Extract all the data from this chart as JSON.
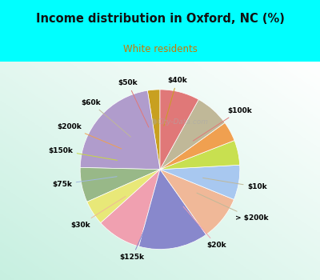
{
  "title": "Income distribution in Oxford, NC (%)",
  "subtitle": "White residents",
  "title_color": "#111111",
  "subtitle_color": "#cc7700",
  "background_top": "#00ffff",
  "labels": [
    "$40k",
    "$100k",
    "$10k",
    "> $200k",
    "$20k",
    "$125k",
    "$30k",
    "$75k",
    "$150k",
    "$200k",
    "$60k",
    "$50k"
  ],
  "sizes": [
    2.5,
    22,
    7,
    5,
    9,
    14,
    9,
    7,
    5,
    4,
    7,
    8
  ],
  "colors": [
    "#c8a020",
    "#b09ccc",
    "#98b888",
    "#e8e878",
    "#f0a0b0",
    "#8888cc",
    "#f0b898",
    "#a8c8f0",
    "#c8e050",
    "#f0a050",
    "#c0b898",
    "#e07878"
  ],
  "line_colors": [
    "#c8a020",
    "#e07878",
    "#c0b898",
    "#c0b898",
    "#f0a0b0",
    "#8888cc",
    "#f0b898",
    "#a0b8e0",
    "#c8d840",
    "#f0a050",
    "#c0b898",
    "#e07878"
  ],
  "start_angle": 90,
  "watermark": "City-Data.com"
}
